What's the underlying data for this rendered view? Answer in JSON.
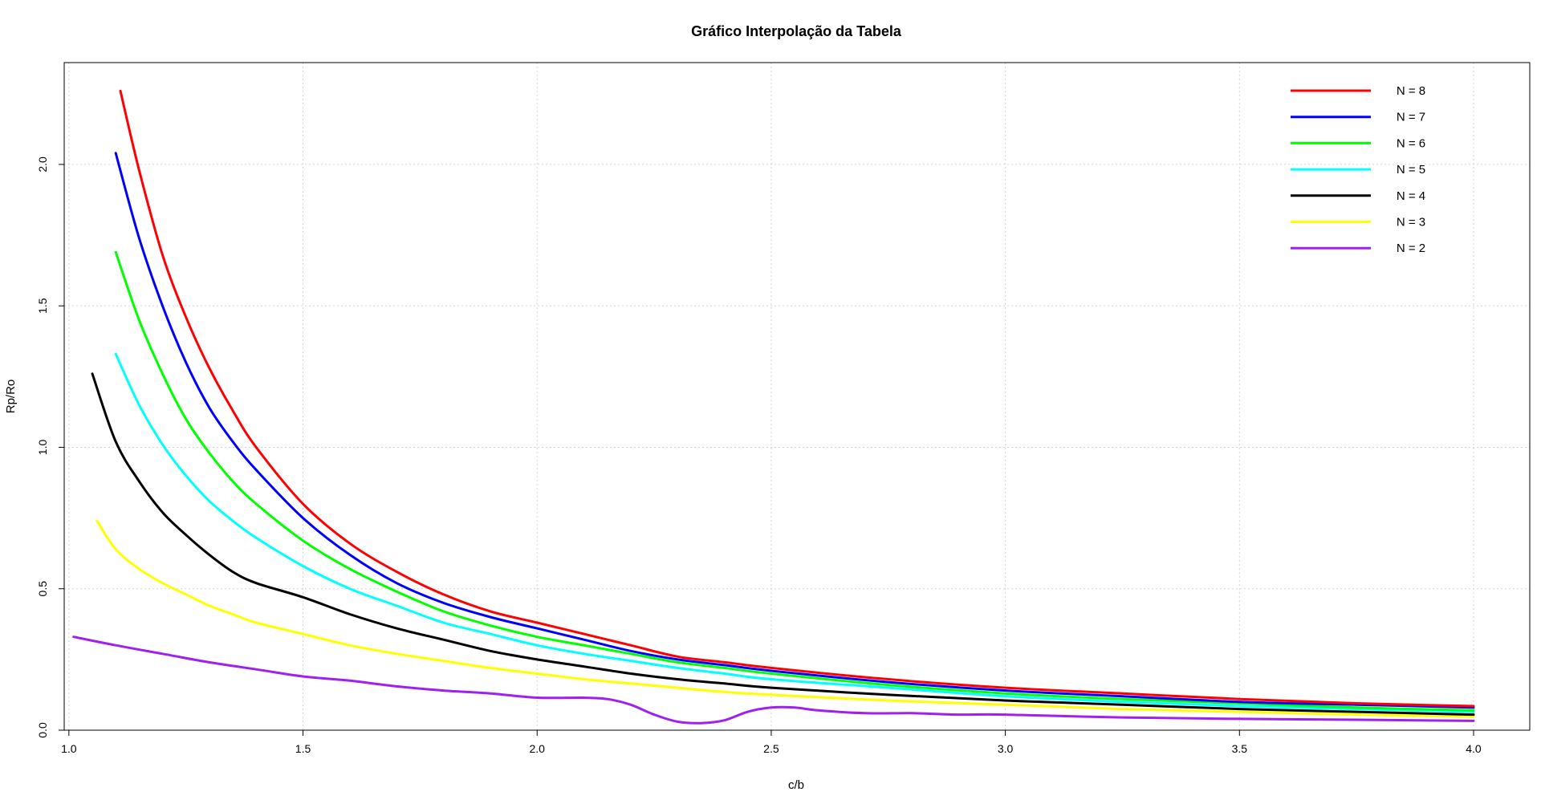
{
  "chart_data": {
    "type": "line",
    "title": "Gráfico Interpolação da Tabela",
    "xlabel": "c/b",
    "ylabel": "Rp/Ro",
    "xlim": [
      0.99,
      4.12
    ],
    "ylim": [
      0.0,
      2.36
    ],
    "xticks": [
      "1.0",
      "1.5",
      "2.0",
      "2.5",
      "3.0",
      "3.5",
      "4.0"
    ],
    "yticks": [
      "0.0",
      "0.5",
      "1.0",
      "1.5",
      "2.0"
    ],
    "grid": true,
    "legend_position": "top-right",
    "series": [
      {
        "name": "N = 8",
        "color": "#ff0000",
        "x": [
          1.11,
          1.15,
          1.2,
          1.25,
          1.3,
          1.35,
          1.4,
          1.5,
          1.6,
          1.7,
          1.8,
          1.9,
          2.0,
          2.1,
          2.2,
          2.3,
          2.4,
          2.5,
          2.75,
          3.0,
          3.25,
          3.5,
          3.75,
          4.0
        ],
        "y": [
          2.26,
          1.98,
          1.68,
          1.46,
          1.28,
          1.13,
          1.0,
          0.8,
          0.66,
          0.56,
          0.48,
          0.42,
          0.38,
          0.34,
          0.3,
          0.26,
          0.24,
          0.22,
          0.18,
          0.15,
          0.13,
          0.11,
          0.095,
          0.085
        ]
      },
      {
        "name": "N = 7",
        "color": "#0000ff",
        "x": [
          1.1,
          1.15,
          1.2,
          1.25,
          1.3,
          1.35,
          1.4,
          1.5,
          1.6,
          1.7,
          1.8,
          1.9,
          2.0,
          2.1,
          2.2,
          2.3,
          2.4,
          2.5,
          2.75,
          3.0,
          3.25,
          3.5,
          3.75,
          4.0
        ],
        "y": [
          2.04,
          1.74,
          1.5,
          1.3,
          1.14,
          1.02,
          0.92,
          0.75,
          0.62,
          0.52,
          0.45,
          0.4,
          0.36,
          0.32,
          0.28,
          0.25,
          0.23,
          0.21,
          0.17,
          0.14,
          0.12,
          0.1,
          0.09,
          0.08
        ]
      },
      {
        "name": "N = 6",
        "color": "#00ff00",
        "x": [
          1.1,
          1.15,
          1.2,
          1.25,
          1.3,
          1.35,
          1.4,
          1.5,
          1.6,
          1.7,
          1.8,
          1.9,
          2.0,
          2.1,
          2.2,
          2.3,
          2.4,
          2.5,
          2.75,
          3.0,
          3.25,
          3.5,
          3.75,
          4.0
        ],
        "y": [
          1.69,
          1.45,
          1.26,
          1.1,
          0.98,
          0.88,
          0.8,
          0.67,
          0.57,
          0.49,
          0.42,
          0.37,
          0.33,
          0.3,
          0.27,
          0.24,
          0.22,
          0.2,
          0.16,
          0.13,
          0.11,
          0.095,
          0.08,
          0.07
        ]
      },
      {
        "name": "N = 5",
        "color": "#00ffff",
        "x": [
          1.1,
          1.15,
          1.2,
          1.25,
          1.3,
          1.35,
          1.4,
          1.5,
          1.6,
          1.7,
          1.8,
          1.9,
          2.0,
          2.1,
          2.2,
          2.3,
          2.4,
          2.5,
          2.75,
          3.0,
          3.25,
          3.5,
          3.75,
          4.0
        ],
        "y": [
          1.33,
          1.15,
          1.01,
          0.9,
          0.81,
          0.74,
          0.68,
          0.58,
          0.5,
          0.44,
          0.38,
          0.34,
          0.3,
          0.27,
          0.245,
          0.22,
          0.2,
          0.18,
          0.15,
          0.12,
          0.1,
          0.085,
          0.075,
          0.065
        ]
      },
      {
        "name": "N = 4",
        "color": "#000000",
        "x": [
          1.05,
          1.1,
          1.15,
          1.2,
          1.25,
          1.3,
          1.35,
          1.4,
          1.5,
          1.6,
          1.7,
          1.8,
          1.9,
          2.0,
          2.1,
          2.2,
          2.3,
          2.4,
          2.5,
          2.75,
          3.0,
          3.25,
          3.5,
          3.75,
          4.0
        ],
        "y": [
          1.26,
          1.02,
          0.88,
          0.77,
          0.69,
          0.62,
          0.56,
          0.52,
          0.47,
          0.41,
          0.36,
          0.32,
          0.28,
          0.25,
          0.225,
          0.2,
          0.18,
          0.165,
          0.15,
          0.125,
          0.105,
          0.09,
          0.075,
          0.065,
          0.055
        ]
      },
      {
        "name": "N = 3",
        "color": "#ffff00",
        "x": [
          1.06,
          1.1,
          1.15,
          1.2,
          1.25,
          1.3,
          1.35,
          1.4,
          1.5,
          1.6,
          1.7,
          1.8,
          1.9,
          2.0,
          2.1,
          2.2,
          2.3,
          2.4,
          2.5,
          2.75,
          3.0,
          3.25,
          3.5,
          3.75,
          4.0
        ],
        "y": [
          0.74,
          0.64,
          0.57,
          0.52,
          0.48,
          0.44,
          0.41,
          0.38,
          0.34,
          0.3,
          0.27,
          0.245,
          0.22,
          0.2,
          0.18,
          0.165,
          0.15,
          0.135,
          0.125,
          0.105,
          0.09,
          0.075,
          0.065,
          0.055,
          0.048
        ]
      },
      {
        "name": "N = 2",
        "color": "#a020f0",
        "x": [
          1.01,
          1.1,
          1.2,
          1.3,
          1.4,
          1.5,
          1.6,
          1.7,
          1.8,
          1.9,
          2.0,
          2.1,
          2.15,
          2.2,
          2.25,
          2.3,
          2.35,
          2.4,
          2.45,
          2.5,
          2.55,
          2.6,
          2.7,
          2.8,
          2.9,
          3.0,
          3.25,
          3.5,
          3.75,
          4.0
        ],
        "y": [
          0.33,
          0.3,
          0.27,
          0.24,
          0.215,
          0.19,
          0.175,
          0.155,
          0.14,
          0.13,
          0.115,
          0.115,
          0.11,
          0.09,
          0.055,
          0.03,
          0.025,
          0.035,
          0.065,
          0.08,
          0.08,
          0.07,
          0.06,
          0.06,
          0.055,
          0.055,
          0.045,
          0.04,
          0.037,
          0.033
        ]
      }
    ]
  }
}
